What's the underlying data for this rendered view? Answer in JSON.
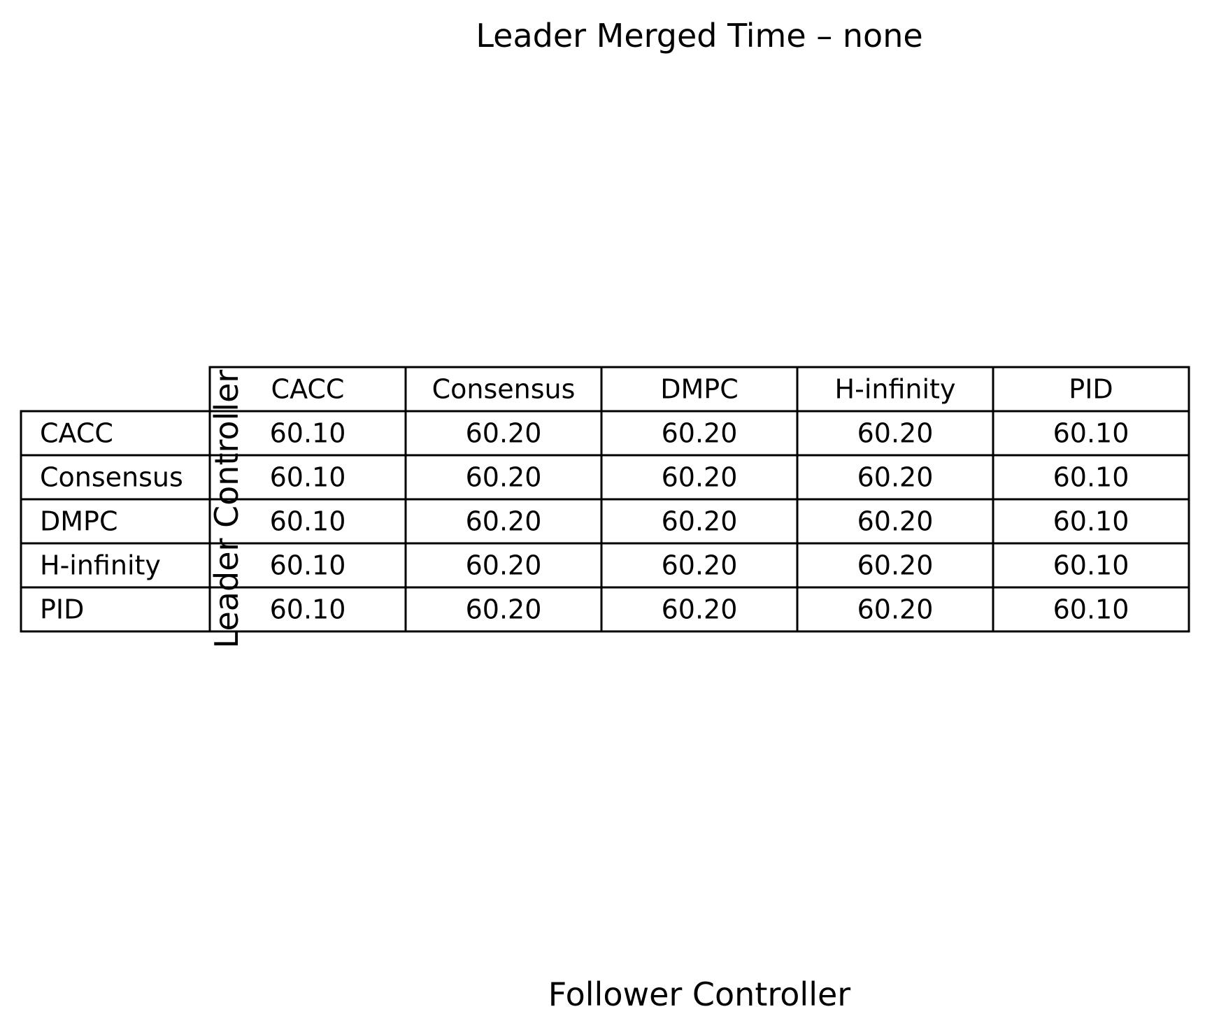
{
  "chart_data": {
    "type": "table",
    "title": "Leader Merged Time – none",
    "xlabel": "Follower Controller",
    "ylabel": "Leader Controller",
    "columns": [
      "CACC",
      "Consensus",
      "DMPC",
      "H-infinity",
      "PID"
    ],
    "rows": [
      "CACC",
      "Consensus",
      "DMPC",
      "H-infinity",
      "PID"
    ],
    "cells": [
      [
        "60.10",
        "60.20",
        "60.20",
        "60.20",
        "60.10"
      ],
      [
        "60.10",
        "60.20",
        "60.20",
        "60.20",
        "60.10"
      ],
      [
        "60.10",
        "60.20",
        "60.20",
        "60.20",
        "60.10"
      ],
      [
        "60.10",
        "60.20",
        "60.20",
        "60.20",
        "60.10"
      ],
      [
        "60.10",
        "60.20",
        "60.20",
        "60.20",
        "60.10"
      ]
    ]
  }
}
